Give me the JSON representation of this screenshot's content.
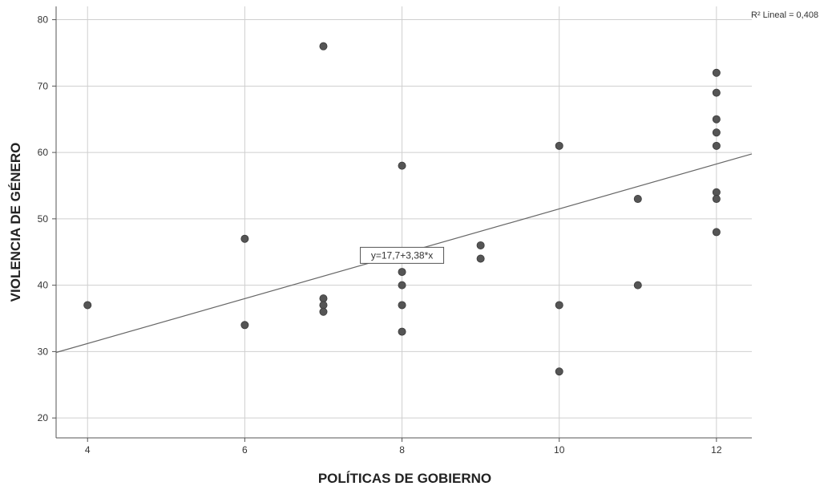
{
  "chart_data": {
    "type": "scatter",
    "xlabel": "POLÍTICAS DE GOBIERNO",
    "ylabel": "VIOLENCIA DE GÉNERO",
    "xlim": [
      3.6,
      12.45
    ],
    "ylim": [
      17,
      82
    ],
    "xticks": [
      4,
      6,
      8,
      10,
      12
    ],
    "yticks": [
      20,
      30,
      40,
      50,
      60,
      70,
      80
    ],
    "grid": true,
    "point_color": "#555555",
    "line_color": "#666666",
    "points": [
      {
        "x": 4,
        "y": 37
      },
      {
        "x": 6,
        "y": 47
      },
      {
        "x": 6,
        "y": 34
      },
      {
        "x": 7,
        "y": 76
      },
      {
        "x": 7,
        "y": 38
      },
      {
        "x": 7,
        "y": 37
      },
      {
        "x": 7,
        "y": 36
      },
      {
        "x": 8,
        "y": 58
      },
      {
        "x": 8,
        "y": 42
      },
      {
        "x": 8,
        "y": 40
      },
      {
        "x": 8,
        "y": 37
      },
      {
        "x": 8,
        "y": 33
      },
      {
        "x": 9,
        "y": 46
      },
      {
        "x": 9,
        "y": 44
      },
      {
        "x": 10,
        "y": 61
      },
      {
        "x": 10,
        "y": 37
      },
      {
        "x": 10,
        "y": 27
      },
      {
        "x": 11,
        "y": 53
      },
      {
        "x": 11,
        "y": 40
      },
      {
        "x": 12,
        "y": 72
      },
      {
        "x": 12,
        "y": 69
      },
      {
        "x": 12,
        "y": 65
      },
      {
        "x": 12,
        "y": 63
      },
      {
        "x": 12,
        "y": 61
      },
      {
        "x": 12,
        "y": 54
      },
      {
        "x": 12,
        "y": 53
      },
      {
        "x": 12,
        "y": 48
      }
    ],
    "fit_line": {
      "intercept": 17.7,
      "slope": 3.38,
      "equation_label": "y=17,7+3,38*x",
      "label_x": 8,
      "label_y": 44.5,
      "r2_label": "R² Lineal = 0,408"
    }
  }
}
